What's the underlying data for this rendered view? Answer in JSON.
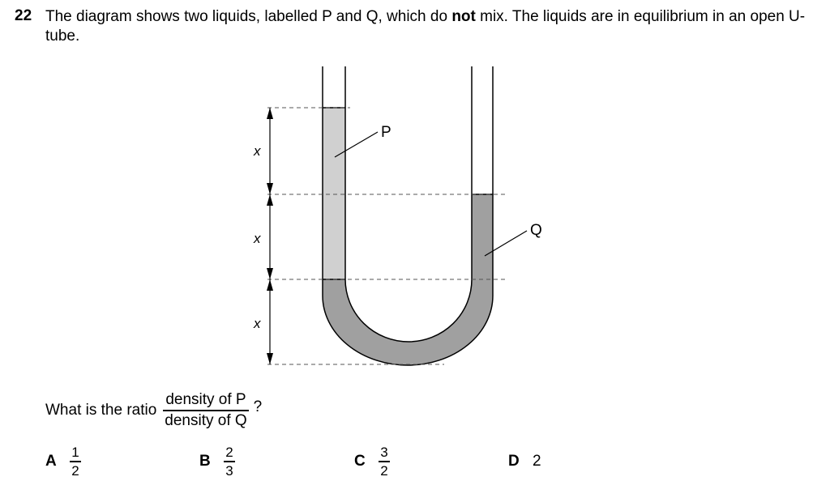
{
  "question": {
    "number": "22",
    "stem_before_bold": "The diagram shows two liquids, labelled P and Q, which do ",
    "stem_bold": "not",
    "stem_after_bold": " mix. The liquids are in equilibrium in an open U-tube."
  },
  "diagram": {
    "label_p": "P",
    "label_q": "Q",
    "height_labels": [
      "x",
      "x",
      "x"
    ],
    "colors": {
      "liquid_p": "#d0d0d0",
      "liquid_q": "#a0a0a0",
      "outline": "#000000",
      "dashed_line": "#555555"
    }
  },
  "prompt": {
    "text": "What is the ratio",
    "numerator": "density of P",
    "denominator": "density of Q",
    "end": "?"
  },
  "options": [
    {
      "letter": "A",
      "numerator": "1",
      "denominator": "2"
    },
    {
      "letter": "B",
      "numerator": "2",
      "denominator": "3"
    },
    {
      "letter": "C",
      "numerator": "3",
      "denominator": "2"
    },
    {
      "letter": "D",
      "value": "2"
    }
  ]
}
